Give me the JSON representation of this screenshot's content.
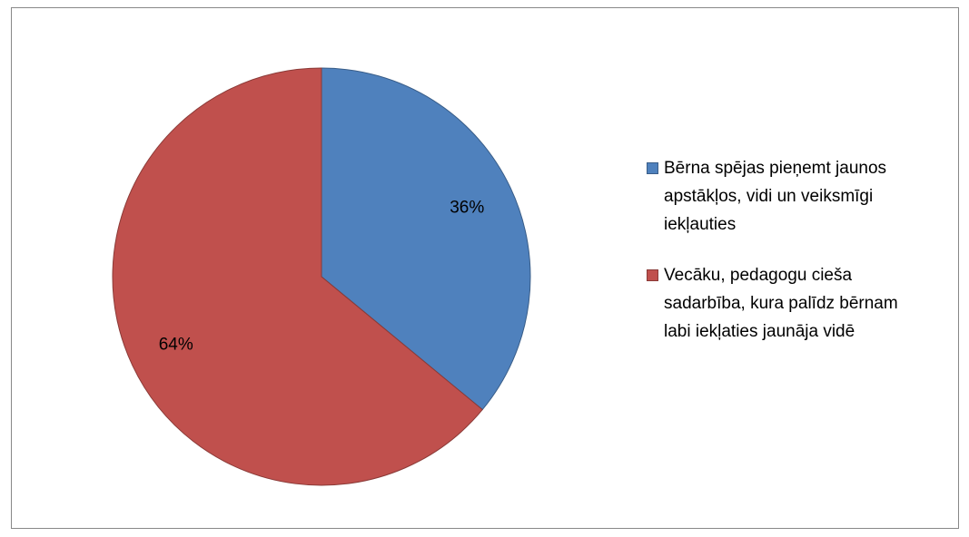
{
  "chart_data": {
    "type": "pie",
    "categories": [
      "Bērna spējas pieņemt jaunos apstākļos, vidi un veiksmīgi iekļauties",
      "Vecāku, pedagogu cieša sadarbība, kura palīdz bērnam labi iekļaties jaunāja vidē"
    ],
    "values": [
      36,
      64
    ],
    "value_labels": [
      "36%",
      "64%"
    ],
    "colors": [
      "#4f81bd",
      "#c0504d"
    ],
    "legend": "right"
  }
}
